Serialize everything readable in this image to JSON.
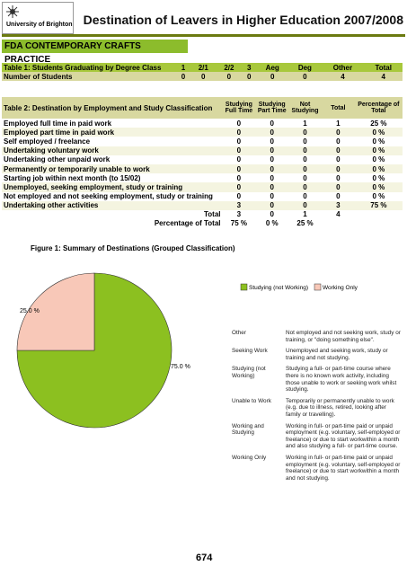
{
  "header": {
    "logo_text": "University of Brighton",
    "title": "Destination of Leavers in Higher Education 2007/2008"
  },
  "course": "FDA CONTEMPORARY CRAFTS PRACTICE",
  "table1": {
    "title": "Table 1: Students Graduating by Degree Class",
    "columns": [
      "1",
      "2/1",
      "2/2",
      "3",
      "Aeg",
      "Deg",
      "Other",
      "Total"
    ],
    "row_label": "Number of Students",
    "values": [
      0,
      0,
      0,
      0,
      0,
      0,
      4,
      4
    ]
  },
  "table2": {
    "title": "Table 2: Destination by Employment and Study Classification",
    "columns": [
      "Studying Full Time",
      "Studying Part Time",
      "Not Studying",
      "Total",
      "Percentage of Total"
    ],
    "rows": [
      {
        "label": "Employed full time in paid work",
        "values": [
          0,
          0,
          1,
          1,
          "25 %"
        ]
      },
      {
        "label": "Employed part time in paid work",
        "values": [
          0,
          0,
          0,
          0,
          "0 %"
        ]
      },
      {
        "label": "Self employed / freelance",
        "values": [
          0,
          0,
          0,
          0,
          "0 %"
        ]
      },
      {
        "label": "Undertaking voluntary work",
        "values": [
          0,
          0,
          0,
          0,
          "0 %"
        ]
      },
      {
        "label": "Undertaking other unpaid work",
        "values": [
          0,
          0,
          0,
          0,
          "0 %"
        ]
      },
      {
        "label": "Permanently or temporarily unable to work",
        "values": [
          0,
          0,
          0,
          0,
          "0 %"
        ]
      },
      {
        "label": "Starting job within next month (to 15/02)",
        "values": [
          0,
          0,
          0,
          0,
          "0 %"
        ]
      },
      {
        "label": "Unemployed, seeking employment, study or training",
        "values": [
          0,
          0,
          0,
          0,
          "0 %"
        ]
      },
      {
        "label": "Not employed and not seeking employment, study or training",
        "values": [
          0,
          0,
          0,
          0,
          "0 %"
        ]
      },
      {
        "label": "Undertaking other activities",
        "values": [
          3,
          0,
          0,
          3,
          "75 %"
        ]
      }
    ],
    "total": {
      "label": "Total",
      "values": [
        3,
        0,
        1,
        4
      ]
    },
    "percentage": {
      "label": "Percentage of Total",
      "values": [
        "75 %",
        "0 %",
        "25 %"
      ]
    }
  },
  "figure": {
    "chart_data": {
      "type": "pie",
      "title": "Figure 1: Summary of Destinations (Grouped Classification)",
      "categories": [
        "Studying (not Working)",
        "Working Only"
      ],
      "values": [
        75,
        25
      ],
      "value_labels": [
        "75.0 %",
        "25.0 %"
      ],
      "colors": [
        "#8cc020",
        "#f8c8b8"
      ]
    },
    "definitions": [
      {
        "term": "Other",
        "text": "Not employed and not seeking work, study or training, or \"doing something else\"."
      },
      {
        "term": "Seeking Work",
        "text": "Unemployed and seeking work, study or training and not studying."
      },
      {
        "term": "Studying (not Working)",
        "text": "Studying a full- or part-time course where there is no known work activity, including those unable to work or seeking work whilst studying."
      },
      {
        "term": "Unable to Work",
        "text": "Temporarily or permanently unable to work (e.g. due to illness, retired, looking after family or travelling)."
      },
      {
        "term": "Working and Studying",
        "text": "Working in full- or part-time paid or unpaid employment (e.g. voluntary, self-employed or freelance) or due to start workwithin a month and also studying a full- or part-time course."
      },
      {
        "term": "Working Only",
        "text": "Working in full- or part-time paid or unpaid employment (e.g. voluntary, self-employed or freelance) or due to start workwithin a month and not studying."
      }
    ]
  },
  "page_number": "674"
}
